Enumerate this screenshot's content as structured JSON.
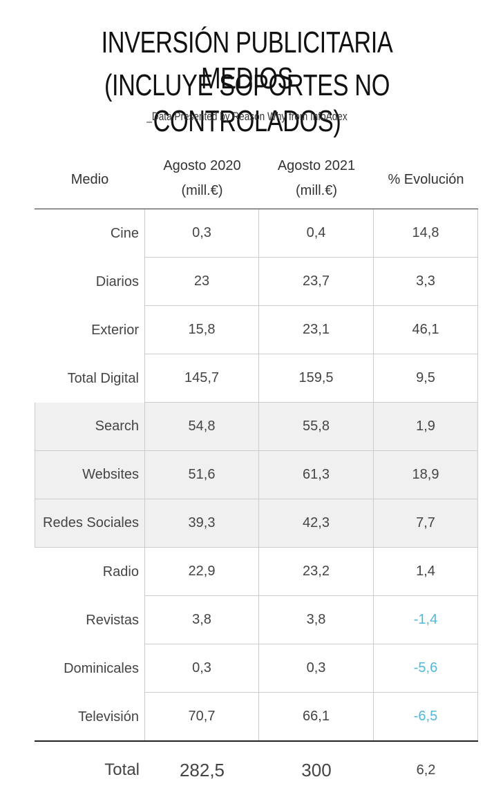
{
  "title": {
    "line1": "INVERSIÓN PUBLICITARIA MEDIOS",
    "line2": "(INCLUYE SOPORTES NO CONTROLADOS)"
  },
  "subtitle": "_Data Presented by Reason Why from InfoAdex",
  "headers": {
    "medio": "Medio",
    "col1_line1": "Agosto 2020",
    "col1_line2": "(mill.€)",
    "col2_line1": "Agosto 2021",
    "col2_line2": "(mill.€)",
    "col3": "% Evolución"
  },
  "rows": [
    {
      "name": "Cine",
      "v2020": "0,3",
      "v2021": "0,4",
      "evol": "14,8",
      "shaded": false,
      "negative": false
    },
    {
      "name": "Diarios",
      "v2020": "23",
      "v2021": "23,7",
      "evol": "3,3",
      "shaded": false,
      "negative": false
    },
    {
      "name": "Exterior",
      "v2020": "15,8",
      "v2021": "23,1",
      "evol": "46,1",
      "shaded": false,
      "negative": false
    },
    {
      "name": "Total Digital",
      "v2020": "145,7",
      "v2021": "159,5",
      "evol": "9,5",
      "shaded": false,
      "negative": false
    },
    {
      "name": "Search",
      "v2020": "54,8",
      "v2021": "55,8",
      "evol": "1,9",
      "shaded": true,
      "negative": false
    },
    {
      "name": "Websites",
      "v2020": "51,6",
      "v2021": "61,3",
      "evol": "18,9",
      "shaded": true,
      "negative": false
    },
    {
      "name": "Redes Sociales",
      "v2020": "39,3",
      "v2021": "42,3",
      "evol": "7,7",
      "shaded": true,
      "negative": false
    },
    {
      "name": "Radio",
      "v2020": "22,9",
      "v2021": "23,2",
      "evol": "1,4",
      "shaded": false,
      "negative": false
    },
    {
      "name": "Revistas",
      "v2020": "3,8",
      "v2021": "3,8",
      "evol": "-1,4",
      "shaded": false,
      "negative": true
    },
    {
      "name": "Dominicales",
      "v2020": "0,3",
      "v2021": "0,3",
      "evol": "-5,6",
      "shaded": false,
      "negative": true
    },
    {
      "name": "Televisión",
      "v2020": "70,7",
      "v2021": "66,1",
      "evol": "-6,5",
      "shaded": false,
      "negative": true
    }
  ],
  "total": {
    "label": "Total",
    "v2020": "282,5",
    "v2021": "300",
    "evol": "6,2"
  },
  "colors": {
    "negative": "#4fb8de",
    "shaded_row": "#f0f0f0",
    "grid": "#cccccc"
  }
}
